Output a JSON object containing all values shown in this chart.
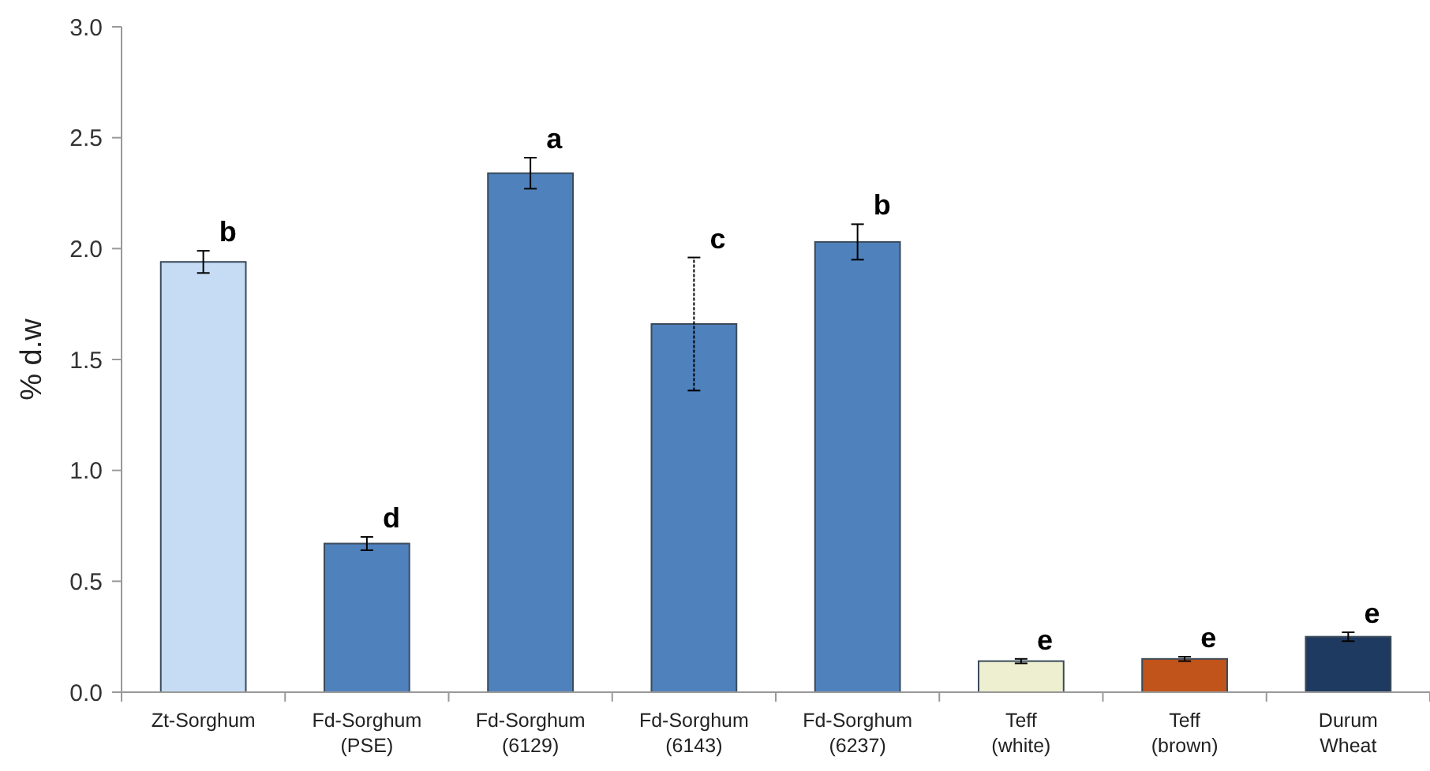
{
  "chart_data": {
    "type": "bar",
    "ylabel": "% d.w",
    "categories": [
      "Zt-Sorghum",
      "Fd-Sorghum\n(PSE)",
      "Fd-Sorghum\n(6129)",
      "Fd-Sorghum\n(6143)",
      "Fd-Sorghum\n(6237)",
      "Teff\n(white)",
      "Teff\n(brown)",
      "Durum\nWheat"
    ],
    "values": [
      1.94,
      0.67,
      2.34,
      1.66,
      2.03,
      0.14,
      0.15,
      0.25
    ],
    "errors": [
      0.05,
      0.03,
      0.07,
      0.3,
      0.08,
      0.01,
      0.01,
      0.02
    ],
    "colors": [
      "#c6dcf5",
      "#4f81bd",
      "#4f81bd",
      "#4f81bd",
      "#4f81bd",
      "#eeeed0",
      "#c0541a",
      "#1f3a60"
    ],
    "ylim": [
      0,
      3
    ],
    "yticks": [
      {
        "value": 0,
        "label": "0.0"
      },
      0.5,
      {
        "value": 1,
        "label": "1.0"
      },
      1.5,
      {
        "value": 2,
        "label": "2.0"
      },
      2.5,
      {
        "value": 3,
        "label": "3.0"
      }
    ],
    "grid": false,
    "annotations": [
      {
        "text": "b",
        "x": "Zt-Sorghum",
        "y": 1.99
      },
      {
        "text": "d",
        "x": "Fd-Sorghum\n(PSE)",
        "y": 0.7
      },
      {
        "text": "a",
        "x": "Fd-Sorghum\n(6129)",
        "y": 2.41
      },
      {
        "text": "c",
        "x": "Fd-Sorghum\n(6143)",
        "y": 1.96
      },
      {
        "text": "b",
        "x": "Fd-Sorghum\n(6237)",
        "y": 2.11
      },
      {
        "text": "e",
        "x": "Teff\n(white)",
        "y": 0.15
      },
      {
        "text": "e",
        "x": "Teff\n(brown)",
        "y": 0.16
      },
      {
        "text": "e",
        "x": "Durum\nWheat",
        "y": 0.27
      }
    ]
  }
}
